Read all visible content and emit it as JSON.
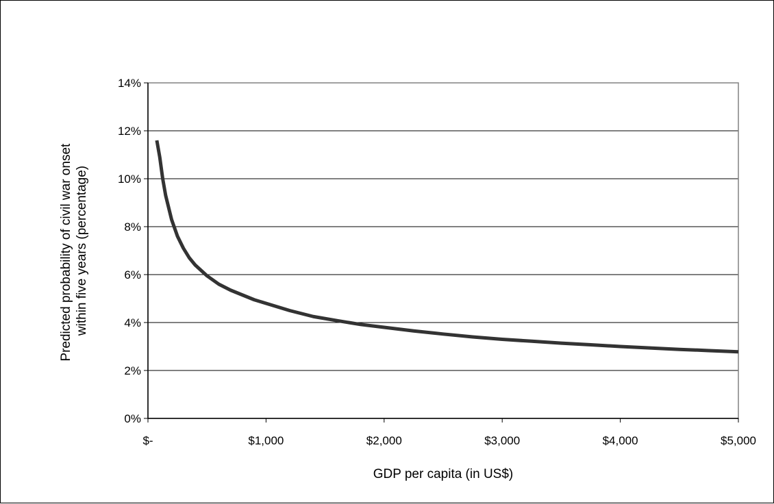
{
  "chart_data": {
    "type": "line",
    "title": "",
    "xlabel": "GDP per capita (in US$)",
    "ylabel": "Predicted probability of civil war onset within five years (percentage)",
    "ylabel_lines": [
      "Predicted probability of civil war onset",
      "within five years (percentage)"
    ],
    "xlim": [
      0,
      5000
    ],
    "ylim": [
      0,
      14
    ],
    "x_ticks": [
      0,
      1000,
      2000,
      3000,
      4000,
      5000
    ],
    "x_tick_labels": [
      "$-",
      "$1,000",
      "$2,000",
      "$3,000",
      "$4,000",
      "$5,000"
    ],
    "y_ticks": [
      0,
      2,
      4,
      6,
      8,
      10,
      12,
      14
    ],
    "y_tick_labels": [
      "0%",
      "2%",
      "4%",
      "6%",
      "8%",
      "10%",
      "12%",
      "14%"
    ],
    "grid": "horizontal major gridlines",
    "legend": "none",
    "series": [
      {
        "color": "#333333",
        "x": [
          75,
          100,
          125,
          150,
          200,
          250,
          300,
          350,
          400,
          500,
          600,
          700,
          800,
          900,
          1000,
          1200,
          1400,
          1600,
          1800,
          2000,
          2250,
          2500,
          2750,
          3000,
          3250,
          3500,
          3750,
          4000,
          4250,
          4500,
          4750,
          5000
        ],
        "y": [
          11.6,
          10.9,
          10.0,
          9.3,
          8.3,
          7.6,
          7.1,
          6.7,
          6.4,
          5.95,
          5.6,
          5.35,
          5.15,
          4.95,
          4.8,
          4.5,
          4.25,
          4.08,
          3.92,
          3.8,
          3.65,
          3.52,
          3.4,
          3.3,
          3.22,
          3.14,
          3.07,
          3.0,
          2.94,
          2.88,
          2.83,
          2.78
        ]
      }
    ]
  },
  "colors": {
    "background": "#ffffff",
    "plot_border": "#808080",
    "gridline": "#000000",
    "axis": "#000000",
    "series_line": "#333333"
  }
}
